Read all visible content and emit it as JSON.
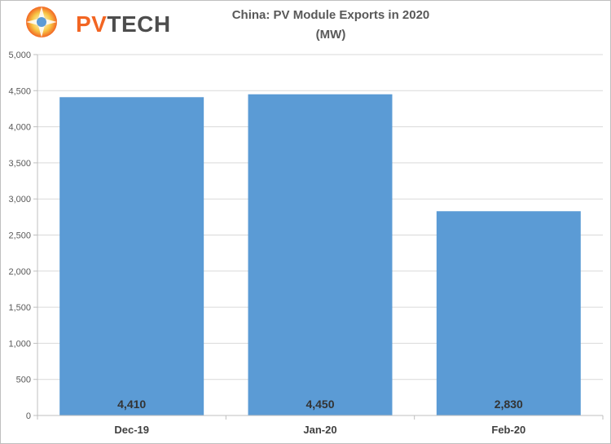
{
  "logo": {
    "text_part1": "PV",
    "text_part2": "TECH",
    "icon": "sunburst-logo-icon",
    "colors": {
      "accent": "#f26522",
      "text": "#4d4d4d"
    }
  },
  "chart_data": {
    "type": "bar",
    "title": "China: PV Module Exports in 2020",
    "subtitle": "(MW)",
    "xlabel": "",
    "ylabel": "",
    "categories": [
      "Dec-19",
      "Jan-20",
      "Feb-20"
    ],
    "values": [
      4410,
      4450,
      2830
    ],
    "data_labels": [
      "4,410",
      "4,450",
      "2,830"
    ],
    "ylim": [
      0,
      5000
    ],
    "yticks": [
      0,
      500,
      1000,
      1500,
      2000,
      2500,
      3000,
      3500,
      4000,
      4500,
      5000
    ],
    "ytick_labels": [
      "0",
      "500",
      "1,000",
      "1,500",
      "2,000",
      "2,500",
      "3,000",
      "3,500",
      "4,000",
      "4,500",
      "5,000"
    ],
    "grid": true,
    "legend": "none",
    "colors": {
      "bar": "#5b9bd5",
      "grid": "#d9d9d9",
      "axis": "#bfbfbf"
    }
  }
}
